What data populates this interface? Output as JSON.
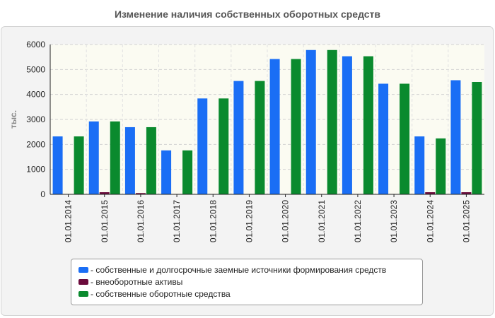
{
  "title": "Изменение наличия собственных оборотных средств",
  "chart_data": {
    "type": "bar",
    "title": "Изменение наличия собственных оборотных средств",
    "ylabel": "тыс.",
    "xlabel": "",
    "ylim": [
      0,
      6000
    ],
    "yticks": [
      "0",
      "1000",
      "2000",
      "3000",
      "4000",
      "5000",
      "6000"
    ],
    "grid": true,
    "legend_position": "bottom",
    "categories": [
      "01.01.2014",
      "01.01.2015",
      "01.01.2016",
      "01.01.2017",
      "01.01.2018",
      "01.01.2019",
      "01.01.2020",
      "01.01.2021",
      "01.01.2022",
      "01.01.2023",
      "01.01.2024",
      "01.01.2025"
    ],
    "series": [
      {
        "name": "- собственные и долгосрочные заемные источники формирования средств",
        "color": "#1a6ef5",
        "values": [
          2320,
          2920,
          2690,
          1760,
          3840,
          4540,
          5420,
          5780,
          5530,
          4430,
          2320,
          4570
        ]
      },
      {
        "name": "- внеоборотные активы",
        "color": "#6b0a3c",
        "values": [
          15,
          85,
          50,
          15,
          15,
          15,
          15,
          15,
          15,
          15,
          85,
          85
        ]
      },
      {
        "name": "- собственные оборотные средства",
        "color": "#0a8a2e",
        "values": [
          2320,
          2920,
          2690,
          1760,
          3840,
          4540,
          5420,
          5780,
          5530,
          4430,
          2240,
          4500
        ]
      }
    ]
  }
}
